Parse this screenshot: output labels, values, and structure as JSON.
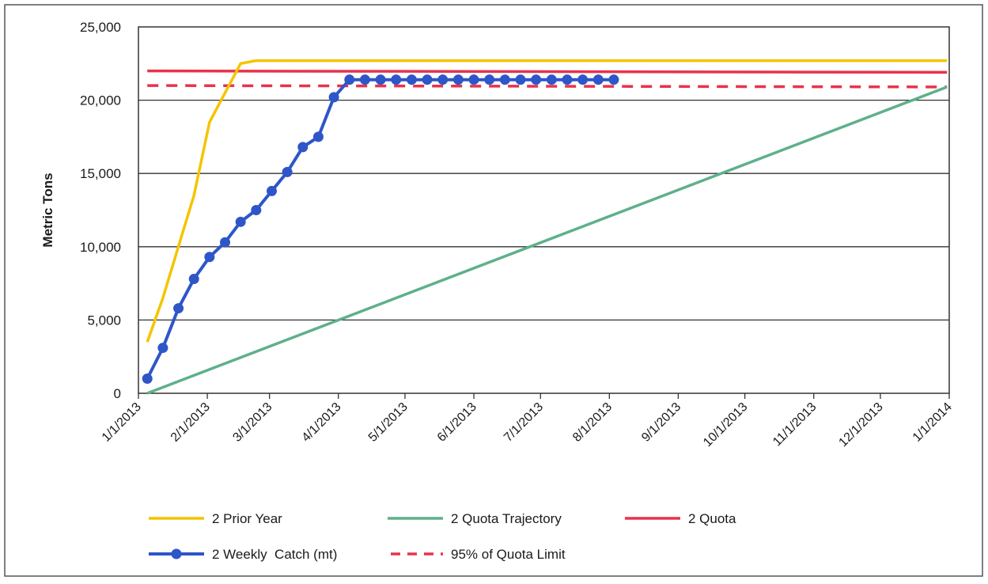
{
  "chart_data": {
    "type": "line",
    "title": "",
    "xlabel": "",
    "ylabel": "Metric Tons",
    "ylim": [
      0,
      25000
    ],
    "y_ticks": [
      0,
      5000,
      10000,
      15000,
      20000,
      25000
    ],
    "y_tick_labels": [
      "0",
      "5,000",
      "10,000",
      "15,000",
      "20,000",
      "25,000"
    ],
    "x_range": [
      "2013-01-01",
      "2014-01-01"
    ],
    "x_ticks": [
      "2013-01-01",
      "2013-02-01",
      "2013-03-01",
      "2013-04-01",
      "2013-05-01",
      "2013-06-01",
      "2013-07-01",
      "2013-08-01",
      "2013-09-01",
      "2013-10-01",
      "2013-11-01",
      "2013-12-01",
      "2014-01-01"
    ],
    "x_tick_labels": [
      "1/1/2013",
      "2/1/2013",
      "3/1/2013",
      "4/1/2013",
      "5/1/2013",
      "6/1/2013",
      "7/1/2013",
      "8/1/2013",
      "9/1/2013",
      "10/1/2013",
      "11/1/2013",
      "12/1/2013",
      "1/1/2014"
    ],
    "grid": true,
    "legend_position": "bottom",
    "series": [
      {
        "name": "2 Prior Year",
        "color": "#f5c400",
        "style": "solid",
        "points": [
          [
            "2013-01-05",
            3500
          ],
          [
            "2013-01-12",
            6500
          ],
          [
            "2013-01-19",
            10000
          ],
          [
            "2013-01-26",
            13500
          ],
          [
            "2013-02-02",
            18500
          ],
          [
            "2013-02-09",
            20500
          ],
          [
            "2013-02-16",
            22500
          ],
          [
            "2013-02-23",
            22700
          ],
          [
            "2013-03-31",
            22700
          ],
          [
            "2013-06-30",
            22700
          ],
          [
            "2013-09-30",
            22700
          ],
          [
            "2013-12-31",
            22700
          ]
        ]
      },
      {
        "name": "2 Quota Trajectory",
        "color": "#5fb08a",
        "style": "solid",
        "points": [
          [
            "2013-01-05",
            0
          ],
          [
            "2013-12-31",
            20900
          ]
        ]
      },
      {
        "name": "2 Quota",
        "color": "#e8334a",
        "style": "solid",
        "points": [
          [
            "2013-01-05",
            22000
          ],
          [
            "2013-12-31",
            21900
          ]
        ]
      },
      {
        "name": "2 Weekly  Catch (mt)",
        "color": "#2e56c8",
        "style": "markers",
        "points": [
          [
            "2013-01-05",
            1000
          ],
          [
            "2013-01-12",
            3100
          ],
          [
            "2013-01-19",
            5800
          ],
          [
            "2013-01-26",
            7800
          ],
          [
            "2013-02-02",
            9300
          ],
          [
            "2013-02-09",
            10300
          ],
          [
            "2013-02-16",
            11700
          ],
          [
            "2013-02-23",
            12500
          ],
          [
            "2013-03-02",
            13800
          ],
          [
            "2013-03-09",
            15100
          ],
          [
            "2013-03-16",
            16800
          ],
          [
            "2013-03-23",
            17500
          ],
          [
            "2013-03-30",
            20200
          ],
          [
            "2013-04-06",
            21400
          ],
          [
            "2013-04-13",
            21400
          ],
          [
            "2013-04-20",
            21400
          ],
          [
            "2013-04-27",
            21400
          ],
          [
            "2013-05-04",
            21400
          ],
          [
            "2013-05-11",
            21400
          ],
          [
            "2013-05-18",
            21400
          ],
          [
            "2013-05-25",
            21400
          ],
          [
            "2013-06-01",
            21400
          ],
          [
            "2013-06-08",
            21400
          ],
          [
            "2013-06-15",
            21400
          ],
          [
            "2013-06-22",
            21400
          ],
          [
            "2013-06-29",
            21400
          ],
          [
            "2013-07-06",
            21400
          ],
          [
            "2013-07-13",
            21400
          ],
          [
            "2013-07-20",
            21400
          ],
          [
            "2013-07-27",
            21400
          ],
          [
            "2013-08-03",
            21400
          ]
        ]
      },
      {
        "name": "95% of Quota Limit",
        "color": "#e8334a",
        "style": "dashed",
        "points": [
          [
            "2013-01-05",
            21000
          ],
          [
            "2013-12-31",
            20900
          ]
        ]
      }
    ]
  }
}
